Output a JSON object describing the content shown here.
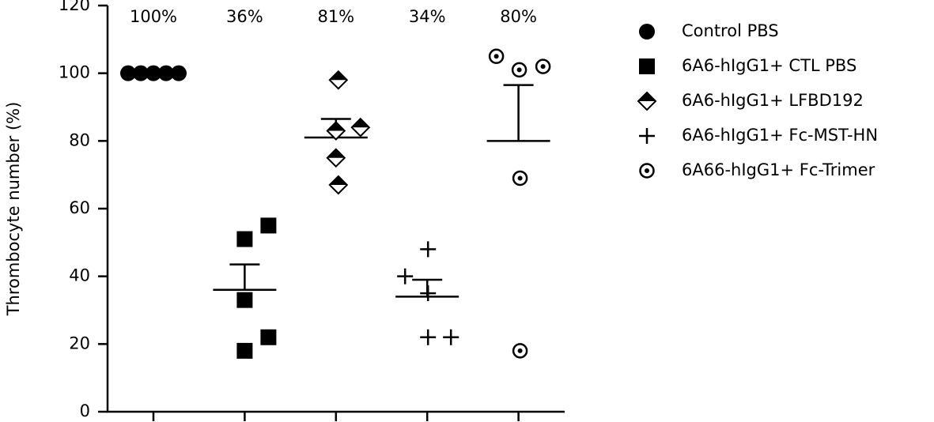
{
  "chart_data": {
    "type": "dotplot",
    "y_label": "Thrombocyte number (%)",
    "categories": [
      null,
      null,
      null,
      null,
      null
    ],
    "ylim": [
      0,
      120
    ],
    "yticks": [
      0,
      20,
      40,
      60,
      80,
      100,
      120
    ],
    "series": [
      {
        "name": "Control PBS",
        "marker": "circle",
        "color": "#000000",
        "values": [
          100,
          100,
          100,
          100,
          100
        ],
        "mean": 100,
        "mean_label": "100%",
        "sem": null
      },
      {
        "name": "6A6-hIgG1+ CTL PBS",
        "marker": "square",
        "color": "#000000",
        "values": [
          55,
          51,
          33,
          22,
          18
        ],
        "mean": 36,
        "mean_label": "36%",
        "sem": 7.5
      },
      {
        "name": "6A6-hIgG1+ LFBD192",
        "marker": "half-diamond",
        "color": "#000000",
        "values": [
          98,
          84,
          83,
          75,
          67
        ],
        "mean": 81,
        "mean_label": "81%",
        "sem": 5.5
      },
      {
        "name": "6A6-hIgG1+ Fc-MST-HN",
        "marker": "plus",
        "color": "#000000",
        "values": [
          48,
          40,
          35,
          22,
          22
        ],
        "mean": 34,
        "mean_label": "34%",
        "sem": 5
      },
      {
        "name": "6A66-hIgG1+ Fc-Trimer",
        "marker": "circled-dot",
        "color": "#000000",
        "values": [
          105,
          102,
          101,
          69,
          18
        ],
        "mean": 80,
        "mean_label": "80%",
        "sem": 16.5
      }
    ]
  }
}
